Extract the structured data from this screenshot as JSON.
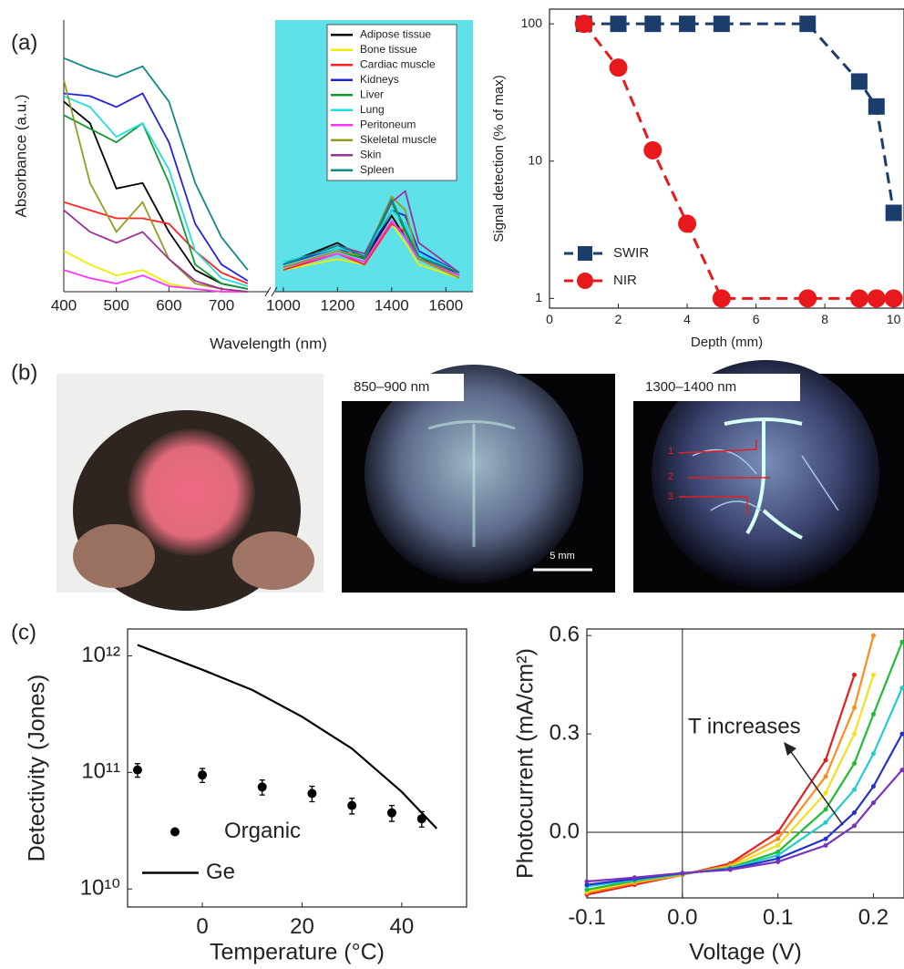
{
  "panel_labels": [
    "(a)",
    "(b)",
    "(c)"
  ],
  "photos": {
    "labels": [
      "850–900 nm",
      "1300–1400 nm"
    ],
    "markers": [
      "1",
      "2",
      "3"
    ],
    "scale_bar": "5 mm"
  },
  "chart_data": [
    {
      "type": "line",
      "xlabel": "Wavelength (nm)",
      "ylabel": "Absorbance (a.u.)",
      "x": [
        400,
        450,
        500,
        550,
        600,
        650,
        700,
        750,
        1000,
        1200,
        1300,
        1400,
        1450,
        1500,
        1650
      ],
      "xlim": [
        [
          400,
          790
        ],
        [
          970,
          1700
        ]
      ],
      "xticks": [
        400,
        500,
        600,
        700,
        1000,
        1200,
        1400,
        1600
      ],
      "ylim": [
        0,
        100
      ],
      "right_panel_color": "#5fe1ea",
      "legend": "upper right",
      "series": [
        {
          "name": "Adipose tissue",
          "color": "#000000",
          "values": [
            70,
            62,
            38,
            40,
            22,
            8,
            3,
            1,
            10,
            18,
            12,
            28,
            20,
            12,
            7
          ]
        },
        {
          "name": "Bone tissue",
          "color": "#eeee00",
          "values": [
            15,
            10,
            6,
            8,
            3,
            1,
            0,
            0,
            8,
            12,
            10,
            25,
            18,
            10,
            5
          ]
        },
        {
          "name": "Cardiac muscle",
          "color": "#ff2222",
          "values": [
            33,
            30,
            27,
            27,
            25,
            15,
            7,
            3,
            8,
            14,
            10,
            25,
            22,
            12,
            6
          ]
        },
        {
          "name": "Kidneys",
          "color": "#2222dd",
          "values": [
            73,
            72,
            68,
            73,
            55,
            25,
            10,
            4,
            10,
            16,
            12,
            30,
            28,
            15,
            7
          ]
        },
        {
          "name": "Liver",
          "color": "#119933",
          "values": [
            65,
            60,
            55,
            62,
            40,
            10,
            3,
            1,
            9,
            15,
            12,
            33,
            22,
            13,
            6
          ]
        },
        {
          "name": "Lung",
          "color": "#22dddd",
          "values": [
            72,
            68,
            57,
            62,
            45,
            15,
            5,
            2,
            11,
            16,
            14,
            30,
            25,
            14,
            7
          ]
        },
        {
          "name": "Peritoneum",
          "color": "#ff33ff",
          "values": [
            8,
            5,
            3,
            6,
            2,
            1,
            0,
            0,
            9,
            14,
            11,
            26,
            20,
            12,
            6
          ]
        },
        {
          "name": "Skeletal muscle",
          "color": "#999922",
          "values": [
            78,
            40,
            22,
            33,
            12,
            3,
            1,
            0,
            9,
            15,
            13,
            35,
            30,
            12,
            5
          ]
        },
        {
          "name": "Skin",
          "color": "#993399",
          "values": [
            30,
            22,
            18,
            22,
            12,
            4,
            1,
            0,
            10,
            17,
            14,
            33,
            37,
            18,
            7
          ]
        },
        {
          "name": "Spleen",
          "color": "#118888",
          "values": [
            86,
            82,
            79,
            83,
            70,
            40,
            20,
            8,
            10,
            17,
            13,
            34,
            23,
            13,
            7
          ]
        }
      ]
    },
    {
      "type": "line",
      "xlabel": "Depth (mm)",
      "ylabel": "Signal detection (% of max)",
      "x": [
        1,
        2,
        3,
        4,
        5,
        7.5,
        9,
        9.5,
        10
      ],
      "xlim": [
        0,
        10.3
      ],
      "xticks": [
        0,
        2,
        4,
        6,
        8,
        10
      ],
      "yscale": "log",
      "ylim": [
        0.85,
        128
      ],
      "yticks": [
        1,
        10,
        100
      ],
      "legend": "lower left",
      "series": [
        {
          "name": "SWIR",
          "color": "#1b3d6b",
          "marker": "square",
          "dash": true,
          "values": [
            100,
            100,
            100,
            100,
            100,
            100,
            38,
            25,
            4.2
          ]
        },
        {
          "name": "NIR",
          "color": "#e8191c",
          "marker": "circle",
          "dash": true,
          "values": [
            100,
            48,
            12,
            3.5,
            1,
            1,
            1,
            1,
            1
          ]
        }
      ]
    },
    {
      "type": "line",
      "xlabel": "Temperature (°C)",
      "ylabel": "Detectivity (Jones)",
      "xlim": [
        -15,
        53
      ],
      "xticks": [
        0,
        20,
        40
      ],
      "yscale": "log",
      "ylim": [
        7000000000,
        1700000000000
      ],
      "yticks": [
        {
          "value": 10000000000,
          "label": "10¹⁰"
        },
        {
          "value": 100000000000,
          "label": "10¹¹"
        },
        {
          "value": 1000000000000,
          "label": "10¹²"
        }
      ],
      "legend": "lower left",
      "series": [
        {
          "name": "Organic",
          "color": "#000000",
          "marker": "dot",
          "line": false,
          "x": [
            -13,
            0,
            12,
            22,
            30,
            38,
            44
          ],
          "values": [
            105000000000,
            95000000000,
            75000000000,
            66000000000,
            52000000000,
            45000000000,
            40000000000
          ],
          "errors": [
            14000000000,
            13000000000,
            11000000000,
            10000000000,
            8000000000,
            7000000000,
            6000000000
          ]
        },
        {
          "name": "Ge",
          "color": "#000000",
          "x": [
            -13,
            0,
            10,
            20,
            30,
            40,
            47
          ],
          "values": [
            1240000000000,
            760000000000,
            510000000000,
            300000000000,
            160000000000,
            68000000000,
            33000000000
          ]
        }
      ]
    },
    {
      "type": "line",
      "xlabel": "Voltage (V)",
      "ylabel": "Photocurrent (mA/cm²)",
      "x": [
        -0.1,
        -0.05,
        0,
        0.05,
        0.1,
        0.15,
        0.18,
        0.2,
        0.23
      ],
      "xlim": [
        -0.1,
        0.232
      ],
      "xticks": [
        -0.1,
        {
          "value": 0,
          "label": "0.0"
        },
        0.1,
        0.2
      ],
      "ylim": [
        -0.2,
        0.62
      ],
      "yticks": [
        {
          "value": 0,
          "label": "0.0"
        },
        0.3,
        0.6
      ],
      "zero_lines": true,
      "annotations": [
        "T increases"
      ],
      "series": [
        {
          "color": "#e02020",
          "marker": "dot",
          "values": [
            -0.19,
            -0.16,
            -0.13,
            -0.095,
            0.0,
            0.22,
            0.48,
            null,
            null
          ]
        },
        {
          "color": "#ff8c1a",
          "marker": "dot",
          "values": [
            -0.185,
            -0.155,
            -0.13,
            -0.1,
            -0.02,
            0.17,
            0.38,
            0.6,
            null
          ]
        },
        {
          "color": "#f2e020",
          "marker": "dot",
          "values": [
            -0.18,
            -0.15,
            -0.128,
            -0.105,
            -0.04,
            0.12,
            0.3,
            0.48,
            null
          ]
        },
        {
          "color": "#22bb33",
          "marker": "dot",
          "values": [
            -0.175,
            -0.148,
            -0.127,
            -0.108,
            -0.06,
            0.07,
            0.21,
            0.36,
            0.58
          ]
        },
        {
          "color": "#22cccc",
          "marker": "dot",
          "values": [
            -0.165,
            -0.145,
            -0.126,
            -0.11,
            -0.07,
            0.03,
            0.13,
            0.24,
            0.44
          ]
        },
        {
          "color": "#2233cc",
          "marker": "dot",
          "values": [
            -0.16,
            -0.142,
            -0.125,
            -0.112,
            -0.08,
            -0.02,
            0.06,
            0.14,
            0.3
          ]
        },
        {
          "color": "#7733bb",
          "marker": "dot",
          "values": [
            -0.15,
            -0.138,
            -0.124,
            -0.114,
            -0.09,
            -0.04,
            0.02,
            0.09,
            0.19
          ]
        }
      ]
    }
  ]
}
